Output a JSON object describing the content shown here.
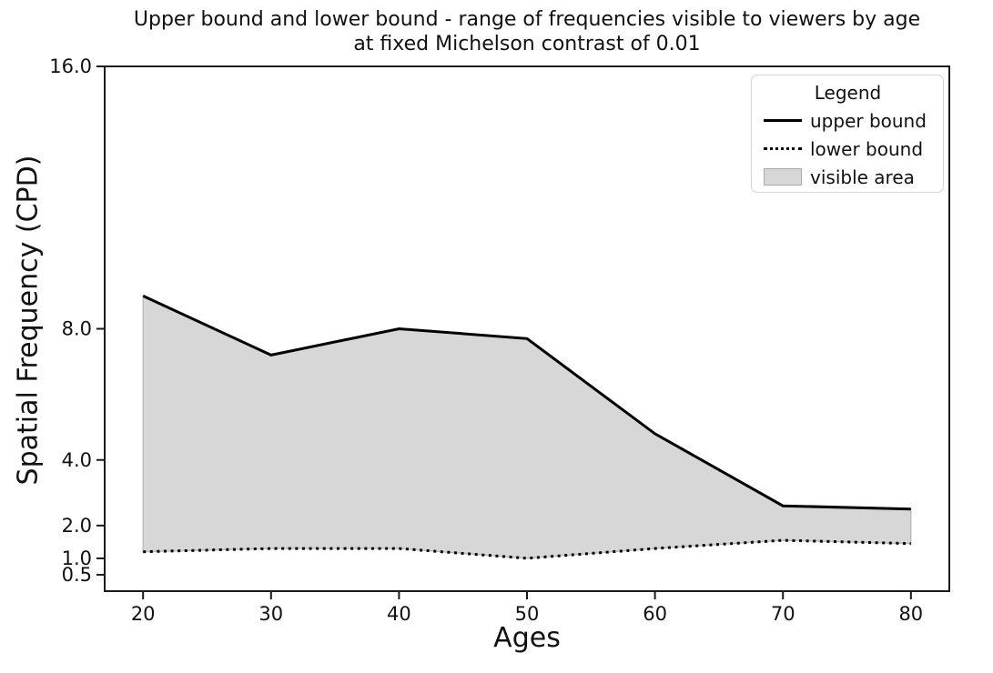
{
  "figure": {
    "title_line1": "Upper bound and lower bound - range of frequencies visible to viewers by age",
    "title_line2": "at fixed Michelson contrast of 0.01",
    "xlabel": "Ages",
    "ylabel": "Spatial Frequency (CPD)"
  },
  "legend": {
    "title": "Legend",
    "entries": [
      {
        "label": "upper bound",
        "handle": "solid-line"
      },
      {
        "label": "lower bound",
        "handle": "dotted-line"
      },
      {
        "label": "visible area",
        "handle": "gray-patch"
      }
    ]
  },
  "colors": {
    "line": "#000000",
    "fill": "#d7d7d7",
    "fill_edge": "#b9b9b9",
    "spine": "#1a1a1a",
    "tick_text": "#111111",
    "legend_border": "#d4d4d4",
    "background": "#ffffff"
  },
  "chart_data": {
    "type": "line",
    "title": "Upper bound and lower bound - range of frequencies visible to viewers by age at fixed Michelson contrast of 0.01",
    "xlabel": "Ages",
    "ylabel": "Spatial Frequency (CPD)",
    "x": [
      20,
      30,
      40,
      50,
      60,
      70,
      80
    ],
    "series": [
      {
        "name": "upper bound",
        "linestyle": "solid",
        "color": "#000000",
        "values": [
          9.0,
          7.2,
          8.0,
          7.7,
          4.8,
          2.6,
          2.5
        ]
      },
      {
        "name": "lower bound",
        "linestyle": "dotted",
        "color": "#000000",
        "values": [
          1.2,
          1.3,
          1.3,
          1.0,
          1.3,
          1.55,
          1.45
        ]
      }
    ],
    "fill_between": {
      "name": "visible area",
      "facecolor": "#d7d7d7",
      "edgecolor": "#b9b9b9"
    },
    "xlim": [
      17,
      83
    ],
    "ylim": [
      0,
      16
    ],
    "xticks": [
      20,
      30,
      40,
      50,
      60,
      70,
      80
    ],
    "xtick_labels": [
      "20",
      "30",
      "40",
      "50",
      "60",
      "70",
      "80"
    ],
    "yticks": [
      16,
      8,
      4,
      2,
      1,
      0.5
    ],
    "ytick_labels": [
      "16.0",
      "8.0",
      "4.0",
      "2.0",
      "1.0",
      "0.5"
    ],
    "scale": "linear",
    "grid": false,
    "legend_position": "upper right"
  }
}
